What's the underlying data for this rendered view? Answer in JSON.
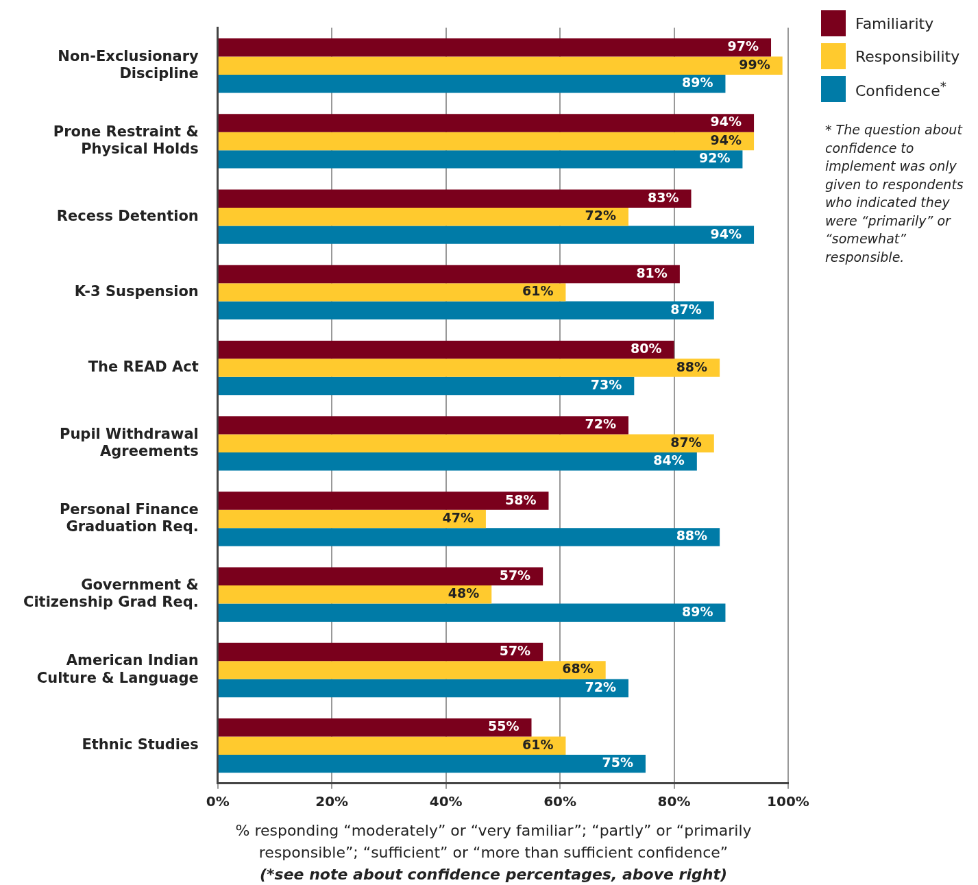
{
  "chart_data": {
    "type": "bar",
    "orientation": "horizontal",
    "categories": [
      "Non-Exclusionary\nDiscipline",
      "Prone Restraint &\nPhysical Holds",
      "Recess Detention",
      "K-3 Suspension",
      "The READ Act",
      "Pupil Withdrawal\nAgreements",
      "Personal Finance\nGraduation Req.",
      "Government &\nCitizenship Grad Req.",
      "American Indian\nCulture & Language",
      "Ethnic Studies"
    ],
    "series": [
      {
        "name": "Familiarity",
        "color": "#7a001c",
        "values": [
          97,
          94,
          83,
          81,
          80,
          72,
          58,
          57,
          57,
          55
        ],
        "value_labels": [
          "97%",
          "94%",
          "83%",
          "81%",
          "80%",
          "72%",
          "58%",
          "57%",
          "57%",
          "55%"
        ]
      },
      {
        "name": "Responsibility",
        "color": "#ffca2e",
        "values": [
          99,
          94,
          72,
          61,
          88,
          87,
          47,
          48,
          68,
          61
        ],
        "value_labels": [
          "99%",
          "94%",
          "72%",
          "61%",
          "88%",
          "87%",
          "47%",
          "48%",
          "68%",
          "61%"
        ]
      },
      {
        "name": "Confidence$^{*}$",
        "color": "#007ba7",
        "values": [
          89,
          92,
          94,
          87,
          73,
          84,
          88,
          89,
          72,
          75
        ],
        "value_labels": [
          "89%",
          "92%",
          "94%",
          "87%",
          "73%",
          "84%",
          "88%",
          "89%",
          "72%",
          "75%"
        ]
      }
    ],
    "xlim": [
      0,
      100
    ],
    "xticks": [
      {
        "value": 0,
        "label": "0%"
      },
      {
        "value": 20,
        "label": "20%"
      },
      {
        "value": 40,
        "label": "40%"
      },
      {
        "value": 60,
        "label": "60%"
      },
      {
        "value": 80,
        "label": "80%"
      },
      {
        "value": 100,
        "label": "100%"
      }
    ],
    "grid": "x",
    "legend": "top right",
    "xlabel": "% responding “moderately” or “very familiar”; “partly” or “primarily responsible”; “sufficient” or “more than sufficient confidence”",
    "annotations": [
      "(*see note about confidence percentages, above right)",
      "* The question about confidence to implement was only given to respondents who indicated they were “primarily” or “somewhat” responsible."
    ]
  }
}
